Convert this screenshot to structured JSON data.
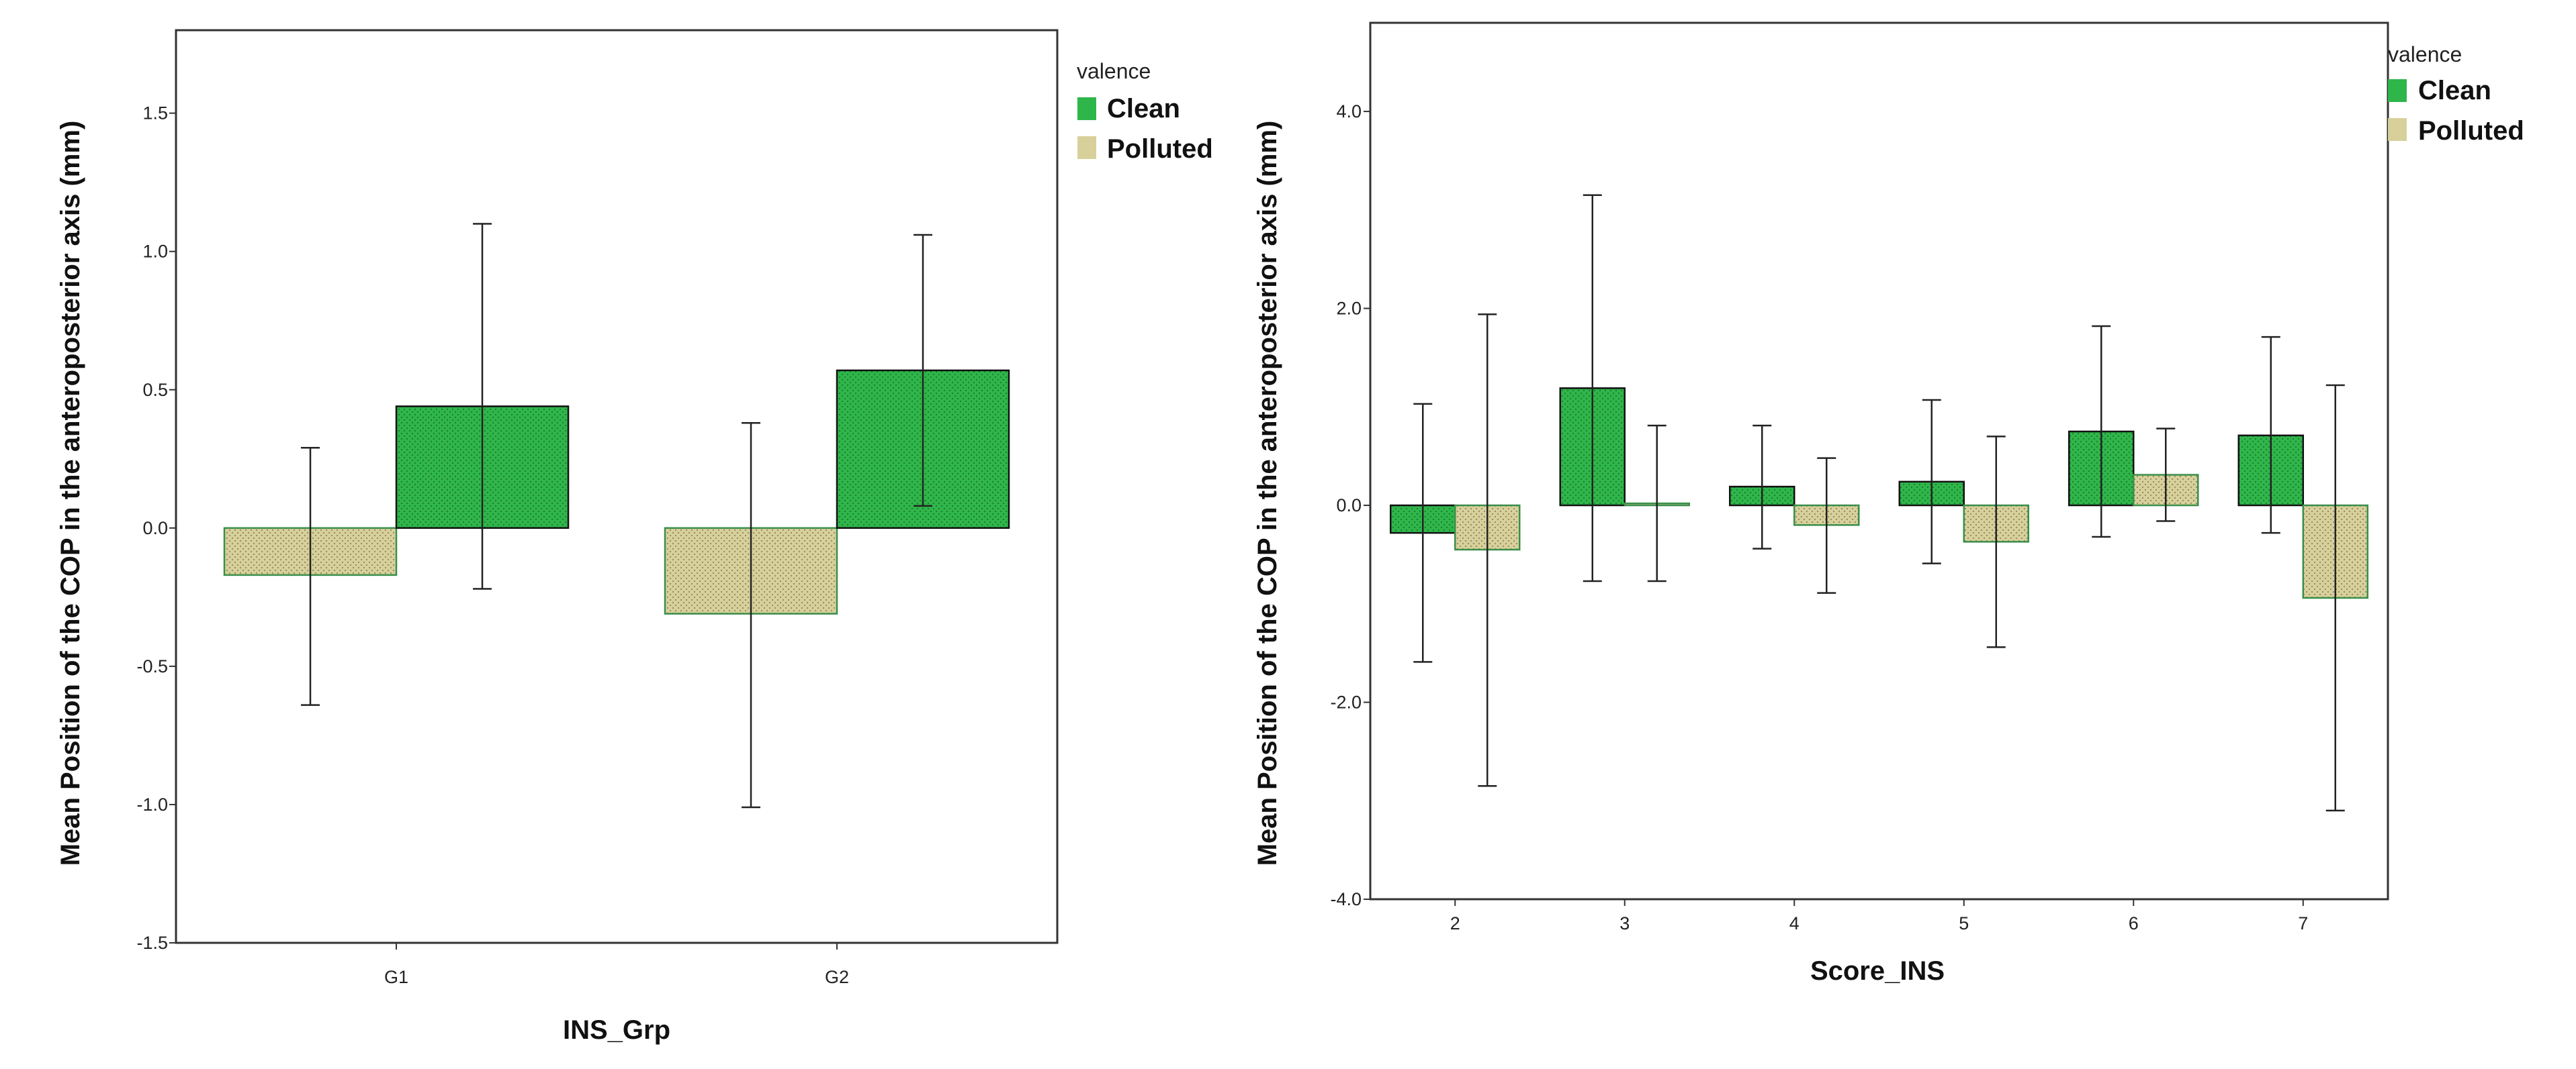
{
  "colors": {
    "clean": "#2fb64a",
    "polluted": "#d8d09a",
    "frame": "#333333",
    "error": "#222222"
  },
  "chart_data": [
    {
      "type": "bar",
      "title": "",
      "xlabel": "INS_Grp",
      "ylabel": "Mean Position of the COP in the anteroposterior axis (mm)",
      "categories": [
        "G1",
        "G2"
      ],
      "ylim": [
        -1.5,
        1.8
      ],
      "yticks": [
        -1.5,
        -1.0,
        -0.5,
        0.0,
        0.5,
        1.0,
        1.5
      ],
      "ytick_labels": [
        "-1.5",
        "-1.0",
        "-0.5",
        "0.0",
        "0.5",
        "1.0",
        "1.5"
      ],
      "legend_title": "valence",
      "series_order": [
        "Polluted",
        "Clean"
      ],
      "series": [
        {
          "name": "Clean",
          "key": "clean",
          "values": [
            0.44,
            0.57
          ],
          "err_low": [
            -0.22,
            0.08
          ],
          "err_high": [
            1.1,
            1.06
          ]
        },
        {
          "name": "Polluted",
          "key": "polluted",
          "values": [
            -0.17,
            -0.31
          ],
          "err_low": [
            -0.64,
            -1.01
          ],
          "err_high": [
            0.29,
            0.38
          ]
        }
      ],
      "legend_entries": [
        "Clean",
        "Polluted"
      ]
    },
    {
      "type": "bar",
      "title": "",
      "xlabel": "Score_INS",
      "ylabel": "Mean Position of the COP in the anteroposterior axis (mm)",
      "categories": [
        "2",
        "3",
        "4",
        "5",
        "6",
        "7"
      ],
      "ylim": [
        -4.0,
        4.9
      ],
      "yticks": [
        -4.0,
        -2.0,
        0.0,
        2.0,
        4.0
      ],
      "ytick_labels": [
        "-4.0",
        "-2.0",
        "0.0",
        "2.0",
        "4.0"
      ],
      "legend_title": "valence",
      "series_order": [
        "Clean",
        "Polluted"
      ],
      "series": [
        {
          "name": "Clean",
          "key": "clean",
          "values": [
            -0.28,
            1.19,
            0.19,
            0.24,
            0.75,
            0.71
          ],
          "err_low": [
            -1.59,
            -0.77,
            -0.44,
            -0.59,
            -0.32,
            -0.28
          ],
          "err_high": [
            1.03,
            3.15,
            0.81,
            1.07,
            1.82,
            1.71
          ]
        },
        {
          "name": "Polluted",
          "key": "polluted",
          "values": [
            -0.45,
            0.02,
            -0.2,
            -0.37,
            0.31,
            -0.94
          ],
          "err_low": [
            -2.85,
            -0.77,
            -0.89,
            -1.44,
            -0.16,
            -3.1
          ],
          "err_high": [
            1.94,
            0.81,
            0.48,
            0.7,
            0.78,
            1.22
          ]
        }
      ],
      "legend_entries": [
        "Clean",
        "Polluted"
      ]
    }
  ]
}
